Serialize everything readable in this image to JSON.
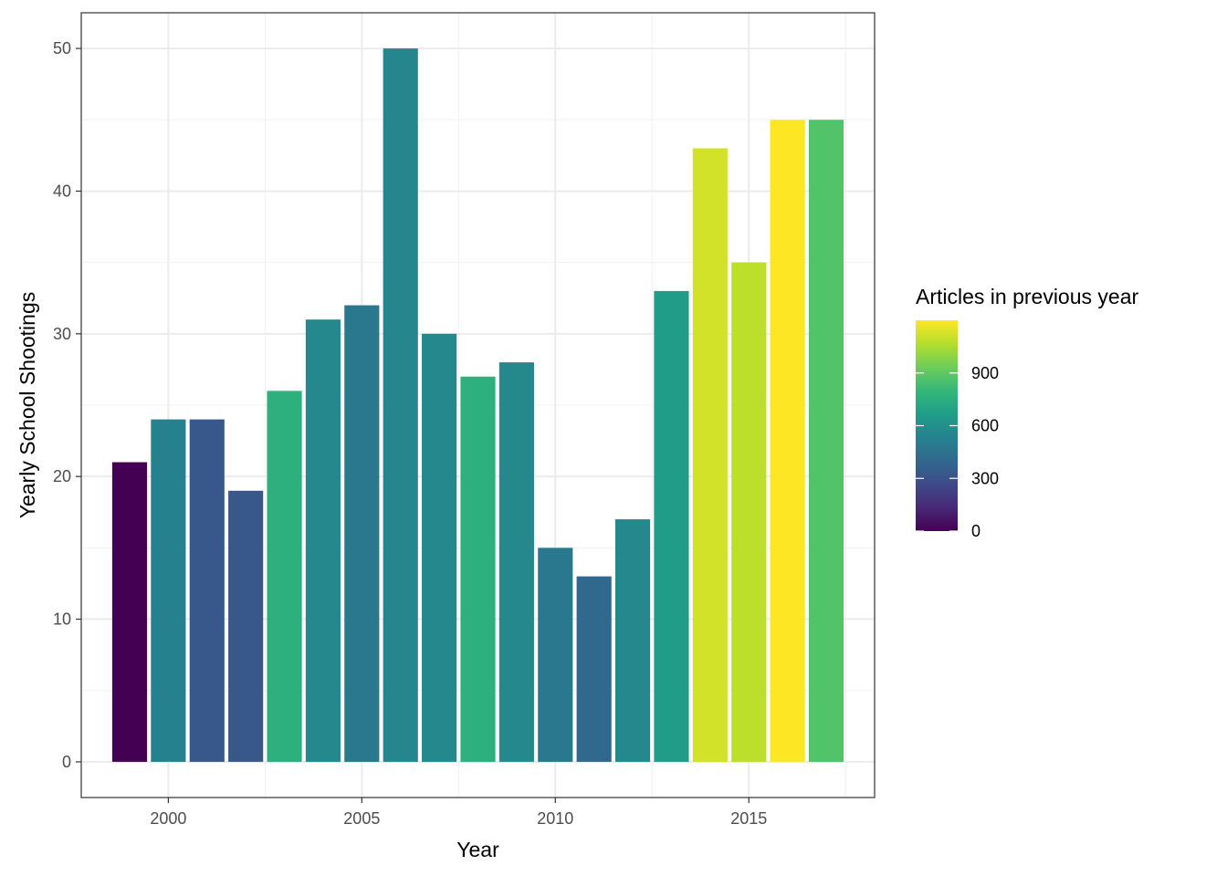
{
  "chart_data": {
    "type": "bar",
    "xlabel": "Year",
    "ylabel": "Yearly School Shootings",
    "x": [
      1999,
      2000,
      2001,
      2002,
      2003,
      2004,
      2005,
      2006,
      2007,
      2008,
      2009,
      2010,
      2011,
      2012,
      2013,
      2014,
      2015,
      2016,
      2017
    ],
    "values": [
      21,
      24,
      24,
      19,
      26,
      31,
      32,
      50,
      30,
      27,
      28,
      15,
      13,
      17,
      33,
      43,
      35,
      45,
      45
    ],
    "fill_values": [
      0,
      530,
      330,
      330,
      760,
      560,
      480,
      550,
      560,
      760,
      560,
      480,
      400,
      560,
      660,
      1120,
      1080,
      1200,
      870
    ],
    "xlim": [
      1997.75,
      2018.25
    ],
    "ylim": [
      -2.5,
      52.5
    ],
    "x_ticks": [
      2000,
      2005,
      2010,
      2015
    ],
    "x_tick_labels": [
      "2000",
      "2005",
      "2010",
      "2015"
    ],
    "y_ticks": [
      0,
      10,
      20,
      30,
      40,
      50
    ],
    "y_tick_labels": [
      "0",
      "10",
      "20",
      "30",
      "40",
      "50"
    ],
    "grid": true,
    "theme": "bw",
    "legend": {
      "title": "Articles in previous year",
      "position": "right",
      "type": "colorbar",
      "palette": "viridis",
      "range": [
        0,
        1200
      ],
      "breaks": [
        0,
        300,
        600,
        900
      ],
      "labels": [
        "0",
        "300",
        "600",
        "900"
      ]
    }
  }
}
